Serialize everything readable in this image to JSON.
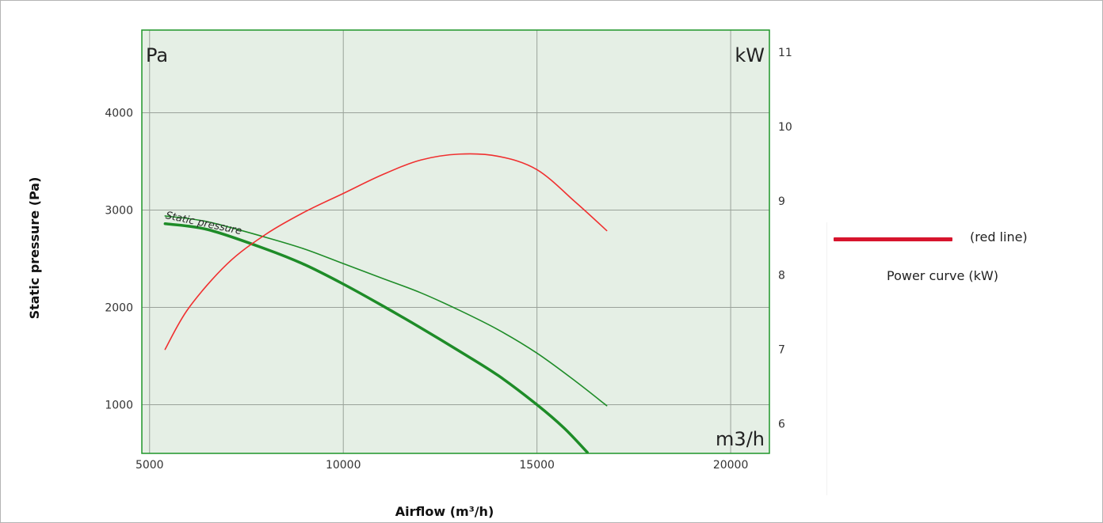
{
  "chart_data": {
    "type": "line",
    "xlabel": "Airflow (m³/h)",
    "ylabel": "Static pressure (Pa)",
    "x_ticks": [
      5000,
      10000,
      15000,
      20000
    ],
    "y_left_ticks": [
      1000,
      2000,
      3000,
      4000
    ],
    "y_right_ticks": [
      6,
      7,
      8,
      9,
      10,
      11
    ],
    "xlim": [
      4800,
      21000
    ],
    "ylim_left": [
      500,
      4850
    ],
    "ylim_right": [
      5.6,
      11.3
    ],
    "inner_labels": {
      "left_unit": "Pa",
      "right_unit": "kW",
      "x_unit": "m3/h"
    },
    "grid": true,
    "series": [
      {
        "name": "Static pressure",
        "axis": "left",
        "color": "#1e8c28",
        "stroke_width": 3.5,
        "points": [
          [
            5400,
            2860
          ],
          [
            6500,
            2800
          ],
          [
            8000,
            2600
          ],
          [
            9000,
            2440
          ],
          [
            10000,
            2240
          ],
          [
            11000,
            2020
          ],
          [
            12000,
            1790
          ],
          [
            13000,
            1550
          ],
          [
            14000,
            1300
          ],
          [
            15000,
            1000
          ],
          [
            15700,
            760
          ],
          [
            16300,
            510
          ]
        ]
      },
      {
        "name": "",
        "axis": "left",
        "color": "#1e8c28",
        "stroke_width": 1.6,
        "points": [
          [
            5400,
            2940
          ],
          [
            6500,
            2880
          ],
          [
            8000,
            2720
          ],
          [
            9000,
            2600
          ],
          [
            10000,
            2450
          ],
          [
            11000,
            2300
          ],
          [
            12000,
            2150
          ],
          [
            13000,
            1970
          ],
          [
            14000,
            1770
          ],
          [
            15000,
            1530
          ],
          [
            16000,
            1240
          ],
          [
            16800,
            990
          ]
        ]
      },
      {
        "name": "Power curve (kW)",
        "axis": "right",
        "color": "#f03030",
        "stroke_width": 1.6,
        "points": [
          [
            5400,
            7.0
          ],
          [
            6000,
            7.55
          ],
          [
            7000,
            8.15
          ],
          [
            8000,
            8.55
          ],
          [
            9000,
            8.85
          ],
          [
            10000,
            9.1
          ],
          [
            11000,
            9.35
          ],
          [
            12000,
            9.55
          ],
          [
            13000,
            9.63
          ],
          [
            14000,
            9.6
          ],
          [
            15000,
            9.42
          ],
          [
            16000,
            8.98
          ],
          [
            16800,
            8.6
          ]
        ]
      }
    ],
    "annotations": [
      {
        "text": "Static pressure",
        "x": 5400,
        "y": 2940,
        "angle_deg": 12,
        "color": "#2a2a2a"
      }
    ],
    "legend": {
      "position": "right",
      "swatch_label": "(red line)",
      "series_label": "Power curve (kW)",
      "swatch_color": "#d7142d"
    },
    "colors": {
      "plot_background": "#e5efe5",
      "plot_border": "#1e9628",
      "grid": "#9aa29a"
    }
  }
}
